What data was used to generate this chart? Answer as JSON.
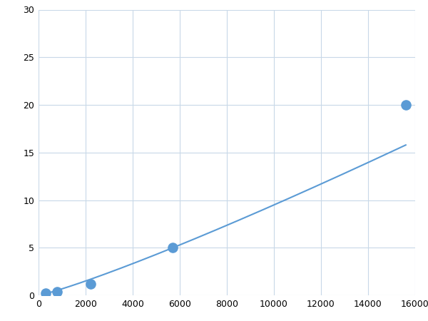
{
  "x_points": [
    300,
    800,
    2200,
    5700,
    15600
  ],
  "y_points": [
    0.25,
    0.4,
    1.2,
    5.0,
    20.0
  ],
  "line_color": "#5b9bd5",
  "marker_color": "#5b9bd5",
  "marker_size": 6,
  "line_width": 1.5,
  "xlim": [
    0,
    16000
  ],
  "ylim": [
    0,
    30
  ],
  "xticks": [
    0,
    2000,
    4000,
    6000,
    8000,
    10000,
    12000,
    14000,
    16000
  ],
  "yticks": [
    0,
    5,
    10,
    15,
    20,
    25,
    30
  ],
  "grid_color": "#c8d8e8",
  "background_color": "#ffffff",
  "figsize": [
    6.0,
    4.5
  ],
  "dpi": 100
}
